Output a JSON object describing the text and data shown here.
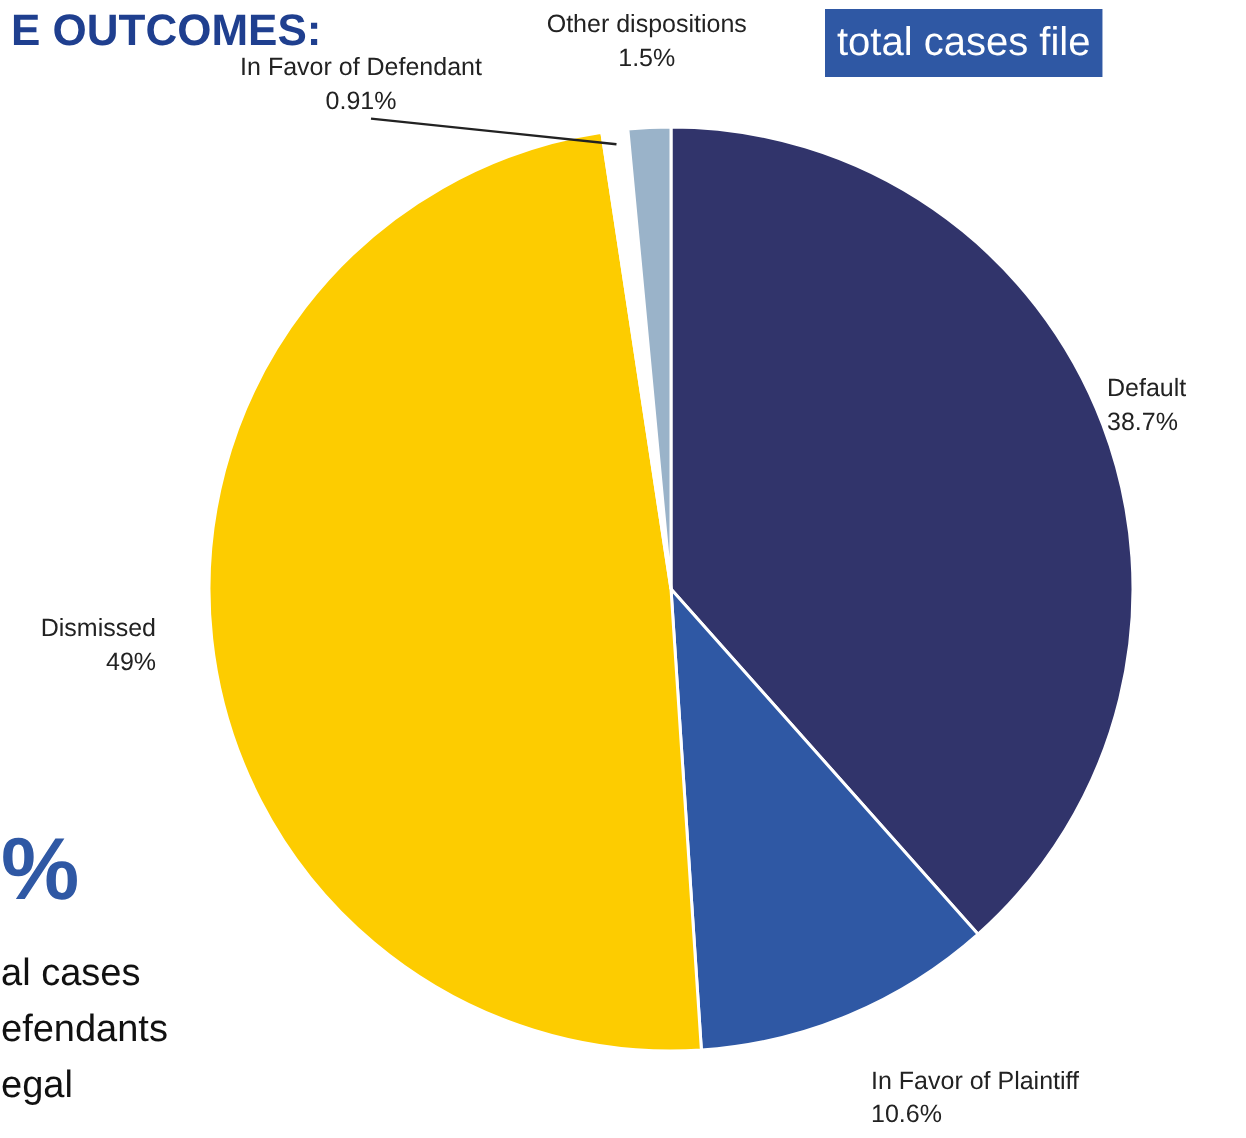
{
  "chart_data": {
    "type": "pie",
    "title": "E OUTCOMES:",
    "categories": [
      "Default",
      "In Favor of Plaintiff",
      "Dismissed",
      "In Favor of Defendant",
      "Other dispositions"
    ],
    "values": [
      38.7,
      10.6,
      49,
      0.91,
      1.5
    ],
    "value_labels": [
      "38.7%",
      "10.6%",
      "49%",
      "0.91%",
      "1.5%"
    ],
    "colors": [
      "#31346b",
      "#2f58a4",
      "#fdcc00",
      "#ffffff",
      "#9ab3c9"
    ],
    "annotations": [
      "total cases file",
      "%",
      "al cases",
      "efendants",
      "egal"
    ]
  }
}
